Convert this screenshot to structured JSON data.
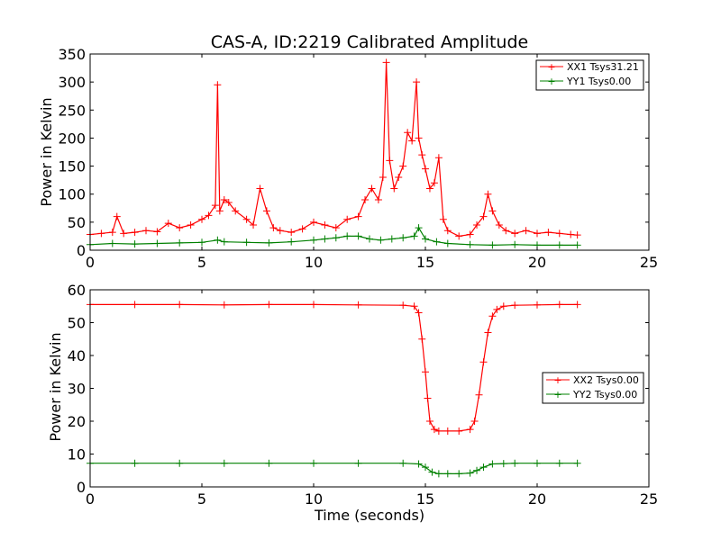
{
  "colors": {
    "red": "#ff0000",
    "green": "#008000"
  },
  "chart_data": [
    {
      "type": "line",
      "title": "CAS-A, ID:2219 Calibrated Amplitude",
      "xlabel": "",
      "ylabel": "Power in Kelvin",
      "xlim": [
        0,
        25
      ],
      "ylim": [
        0,
        350
      ],
      "xticks": [
        0,
        5,
        10,
        15,
        20,
        25
      ],
      "yticks": [
        0,
        50,
        100,
        150,
        200,
        250,
        300,
        350
      ],
      "legend_position": "top-right",
      "series": [
        {
          "name": "XX1 Tsys31.21",
          "color": "#ff0000",
          "x": [
            0,
            0.5,
            1,
            1.2,
            1.5,
            2,
            2.5,
            3,
            3.5,
            4,
            4.5,
            5,
            5.3,
            5.6,
            5.7,
            5.8,
            6,
            6.2,
            6.5,
            7,
            7.3,
            7.6,
            7.9,
            8.2,
            8.5,
            9,
            9.5,
            10,
            10.5,
            11,
            11.5,
            12,
            12.3,
            12.6,
            12.9,
            13.1,
            13.25,
            13.4,
            13.6,
            13.8,
            14,
            14.2,
            14.4,
            14.6,
            14.7,
            14.85,
            15,
            15.2,
            15.4,
            15.6,
            15.8,
            16,
            16.5,
            17,
            17.3,
            17.6,
            17.8,
            18,
            18.3,
            18.6,
            19,
            19.5,
            20,
            20.5,
            21,
            21.5,
            21.8
          ],
          "y": [
            28,
            30,
            32,
            60,
            30,
            32,
            35,
            33,
            48,
            40,
            45,
            55,
            62,
            80,
            295,
            70,
            90,
            85,
            70,
            55,
            45,
            110,
            70,
            40,
            35,
            32,
            38,
            50,
            45,
            40,
            55,
            60,
            90,
            110,
            90,
            130,
            335,
            160,
            110,
            130,
            150,
            210,
            195,
            300,
            200,
            170,
            145,
            110,
            120,
            165,
            55,
            35,
            25,
            28,
            45,
            60,
            100,
            70,
            45,
            35,
            30,
            35,
            30,
            32,
            30,
            28,
            27
          ]
        },
        {
          "name": "YY1 Tsys0.00",
          "color": "#008000",
          "x": [
            0,
            1,
            2,
            3,
            4,
            5,
            5.7,
            6,
            7,
            8,
            9,
            10,
            10.5,
            11,
            11.5,
            12,
            12.5,
            13,
            13.5,
            14,
            14.5,
            14.7,
            15,
            15.5,
            16,
            17,
            18,
            19,
            20,
            21,
            21.8
          ],
          "y": [
            10,
            12,
            11,
            12,
            13,
            14,
            18,
            15,
            14,
            13,
            15,
            18,
            20,
            22,
            25,
            25,
            20,
            18,
            20,
            22,
            25,
            40,
            20,
            15,
            12,
            10,
            9,
            10,
            9,
            9,
            9
          ]
        }
      ]
    },
    {
      "type": "line",
      "title": "",
      "xlabel": "Time (seconds)",
      "ylabel": "Power in Kelvin",
      "xlim": [
        0,
        25
      ],
      "ylim": [
        0,
        60
      ],
      "xticks": [
        0,
        5,
        10,
        15,
        20,
        25
      ],
      "yticks": [
        0,
        10,
        20,
        30,
        40,
        50,
        60
      ],
      "legend_position": "center-right",
      "series": [
        {
          "name": "XX2 Tsys0.00",
          "color": "#ff0000",
          "x": [
            0,
            2,
            4,
            6,
            8,
            10,
            12,
            14,
            14.5,
            14.7,
            14.85,
            15,
            15.1,
            15.2,
            15.4,
            15.6,
            16,
            16.5,
            17,
            17.2,
            17.4,
            17.6,
            17.8,
            18,
            18.2,
            18.5,
            19,
            20,
            21,
            21.8
          ],
          "y": [
            55.5,
            55.5,
            55.5,
            55.4,
            55.5,
            55.5,
            55.4,
            55.3,
            55,
            53,
            45,
            35,
            27,
            20,
            17.5,
            17,
            17,
            17,
            17.5,
            20,
            28,
            38,
            47,
            52,
            54,
            55,
            55.3,
            55.4,
            55.5,
            55.5
          ]
        },
        {
          "name": "YY2 Tsys0.00",
          "color": "#008000",
          "x": [
            0,
            2,
            4,
            6,
            8,
            10,
            12,
            14,
            14.7,
            15,
            15.3,
            15.6,
            16,
            16.5,
            17,
            17.3,
            17.6,
            18,
            18.5,
            19,
            20,
            21,
            21.8
          ],
          "y": [
            7.2,
            7.2,
            7.2,
            7.2,
            7.2,
            7.2,
            7.2,
            7.2,
            7,
            6,
            4.5,
            4,
            4,
            4,
            4.2,
            5,
            6,
            7,
            7.1,
            7.2,
            7.2,
            7.2,
            7.2
          ]
        }
      ]
    }
  ]
}
